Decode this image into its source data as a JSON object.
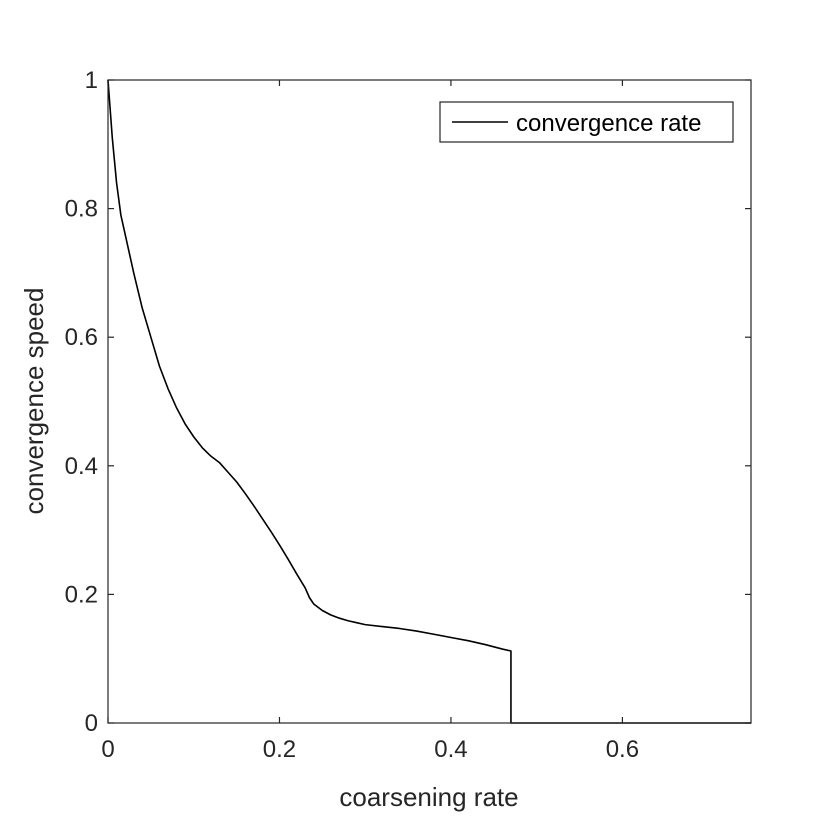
{
  "chart_data": {
    "type": "line",
    "xlabel": "coarsening rate",
    "ylabel": "convergence speed",
    "xlim": [
      0,
      0.75
    ],
    "ylim": [
      0,
      1
    ],
    "x_ticks": [
      0,
      0.2,
      0.4,
      0.6
    ],
    "x_tick_labels": [
      "0",
      "0.2",
      "0.4",
      "0.6"
    ],
    "y_ticks": [
      0,
      0.2,
      0.4,
      0.6,
      0.8,
      1
    ],
    "y_tick_labels": [
      "0",
      "0.2",
      "0.4",
      "0.6",
      "0.8",
      "1"
    ],
    "grid": false,
    "legend_position": "top-right",
    "colors": {
      "series": "#000000",
      "axes": "#262626"
    },
    "series": [
      {
        "name": "convergence rate",
        "x": [
          0,
          0.005,
          0.01,
          0.015,
          0.02,
          0.03,
          0.04,
          0.05,
          0.06,
          0.07,
          0.08,
          0.09,
          0.1,
          0.11,
          0.12,
          0.13,
          0.14,
          0.15,
          0.16,
          0.17,
          0.18,
          0.19,
          0.2,
          0.21,
          0.22,
          0.23,
          0.235,
          0.24,
          0.25,
          0.26,
          0.27,
          0.28,
          0.29,
          0.3,
          0.32,
          0.34,
          0.36,
          0.38,
          0.4,
          0.42,
          0.44,
          0.46,
          0.47,
          0.47,
          0.75
        ],
        "y": [
          1.0,
          0.91,
          0.84,
          0.79,
          0.76,
          0.7,
          0.645,
          0.6,
          0.555,
          0.52,
          0.49,
          0.465,
          0.445,
          0.428,
          0.415,
          0.405,
          0.39,
          0.375,
          0.357,
          0.338,
          0.318,
          0.298,
          0.277,
          0.255,
          0.232,
          0.21,
          0.195,
          0.185,
          0.175,
          0.168,
          0.163,
          0.159,
          0.156,
          0.153,
          0.15,
          0.147,
          0.143,
          0.138,
          0.133,
          0.128,
          0.122,
          0.115,
          0.112,
          0.0,
          0.0
        ]
      }
    ]
  }
}
